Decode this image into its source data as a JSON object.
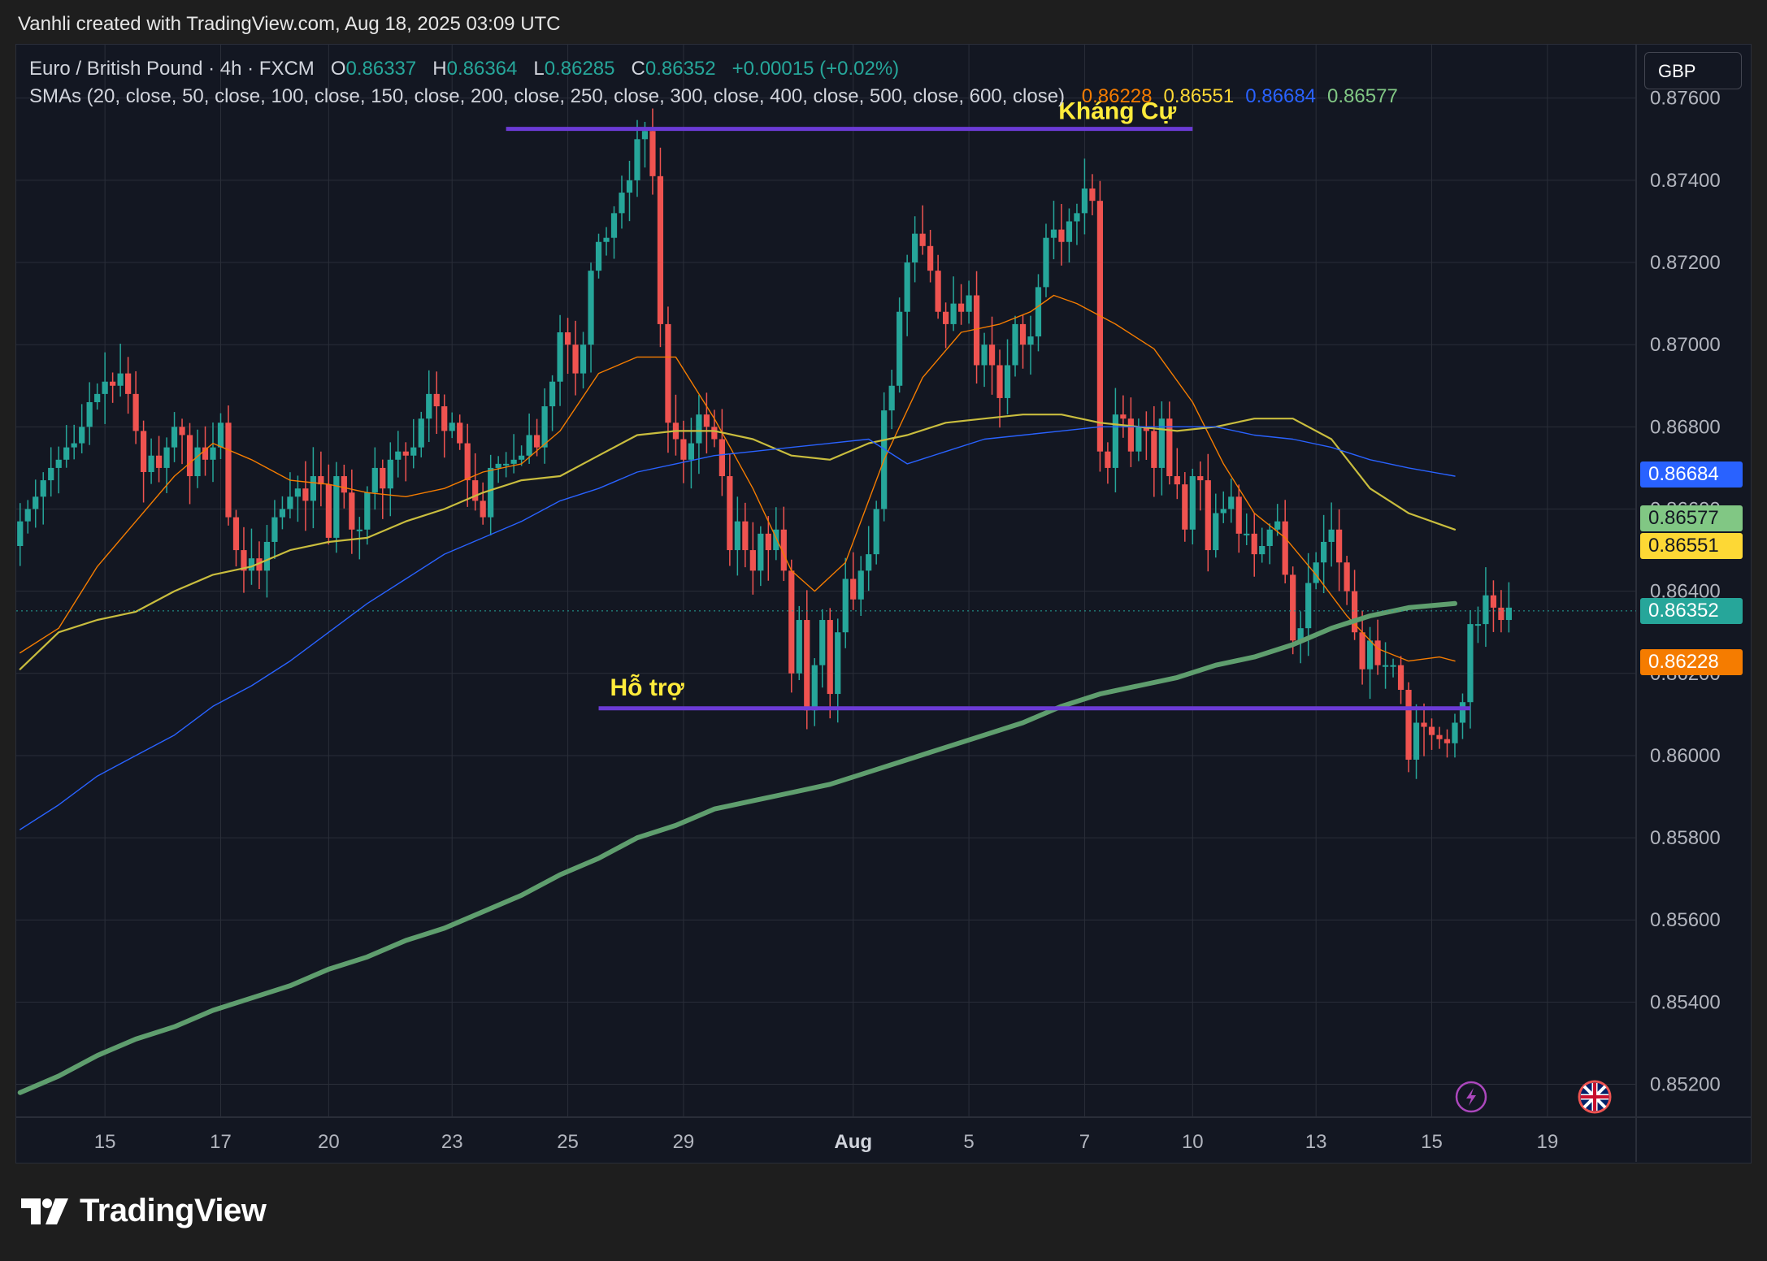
{
  "header": {
    "credit": "Vanhli created with TradingView.com, Aug 18, 2025 03:09 UTC"
  },
  "legend": {
    "symbol": "Euro / British Pound · 4h · FXCM",
    "open_label": "O",
    "open": "0.86337",
    "high_label": "H",
    "high": "0.86364",
    "low_label": "L",
    "low": "0.86285",
    "close_label": "C",
    "close": "0.86352",
    "change": "+0.00015 (+0.02%)",
    "sma_label": "SMAs (20, close, 50, close, 100, close, 150, close, 200, close, 250, close, 300, close, 400, close, 500, close, 600, close)",
    "sma_values": [
      {
        "value": "0.86228",
        "color": "#f57c00"
      },
      {
        "value": "0.86551",
        "color": "#fdd835"
      },
      {
        "value": "0.86684",
        "color": "#2962ff"
      },
      {
        "value": "0.86577",
        "color": "#81c784"
      }
    ]
  },
  "currency_button": "GBP",
  "brand": "TradingView",
  "colors": {
    "up": "#26a69a",
    "down": "#ef5350",
    "background": "#131722",
    "grid": "#2a2e39",
    "level_line": "#6c3bd6",
    "annotation": "#ffeb3b"
  },
  "chart_data": {
    "type": "candlestick",
    "title": "Euro / British Pound · 4h · FXCM",
    "timeframe": "4h",
    "y_axis": {
      "ylim": [
        0.8512,
        0.8773
      ],
      "ticks": [
        "0.87600",
        "0.87400",
        "0.87200",
        "0.87000",
        "0.86800",
        "0.86600",
        "0.86400",
        "0.86200",
        "0.86000",
        "0.85800",
        "0.85600",
        "0.85400",
        "0.85200"
      ],
      "side": "right"
    },
    "x_axis": {
      "ticks": [
        {
          "label": "15",
          "bar": 11,
          "bold": false
        },
        {
          "label": "17",
          "bar": 26,
          "bold": false
        },
        {
          "label": "20",
          "bar": 40,
          "bold": false
        },
        {
          "label": "23",
          "bar": 56,
          "bold": false
        },
        {
          "label": "25",
          "bar": 71,
          "bold": false
        },
        {
          "label": "29",
          "bar": 86,
          "bold": false
        },
        {
          "label": "Aug",
          "bar": 108,
          "bold": true
        },
        {
          "label": "5",
          "bar": 123,
          "bold": false
        },
        {
          "label": "7",
          "bar": 138,
          "bold": false
        },
        {
          "label": "10",
          "bar": 152,
          "bold": false
        },
        {
          "label": "13",
          "bar": 168,
          "bold": false
        },
        {
          "label": "15",
          "bar": 183,
          "bold": false
        },
        {
          "label": "19",
          "bar": 198,
          "bold": false
        }
      ],
      "total_slots": 210
    },
    "candles_close": [
      0.8657,
      0.866,
      0.8663,
      0.8667,
      0.867,
      0.8672,
      0.8675,
      0.8676,
      0.868,
      0.8686,
      0.8688,
      0.8691,
      0.869,
      0.8693,
      0.8688,
      0.8679,
      0.8669,
      0.8673,
      0.867,
      0.8675,
      0.868,
      0.8678,
      0.8668,
      0.8675,
      0.8672,
      0.8675,
      0.8681,
      0.8658,
      0.865,
      0.8645,
      0.8648,
      0.8645,
      0.8652,
      0.8658,
      0.866,
      0.8663,
      0.8665,
      0.8662,
      0.8668,
      0.8666,
      0.8653,
      0.8668,
      0.8664,
      0.8655,
      0.8655,
      0.8664,
      0.867,
      0.8665,
      0.8672,
      0.8674,
      0.8673,
      0.8675,
      0.8682,
      0.8688,
      0.8685,
      0.8679,
      0.8681,
      0.8676,
      0.8667,
      0.8662,
      0.8658,
      0.867,
      0.8671,
      0.8671,
      0.8672,
      0.8673,
      0.8678,
      0.8675,
      0.8685,
      0.8691,
      0.8703,
      0.87,
      0.8693,
      0.87,
      0.8718,
      0.8725,
      0.8726,
      0.8732,
      0.8737,
      0.874,
      0.875,
      0.8752,
      0.8741,
      0.8705,
      0.8681,
      0.8677,
      0.8672,
      0.8676,
      0.8683,
      0.868,
      0.8677,
      0.8668,
      0.865,
      0.8657,
      0.865,
      0.8645,
      0.8654,
      0.865,
      0.8655,
      0.8645,
      0.862,
      0.8633,
      0.8611,
      0.8622,
      0.8633,
      0.8615,
      0.863,
      0.8643,
      0.8638,
      0.8645,
      0.8649,
      0.866,
      0.8684,
      0.869,
      0.8708,
      0.872,
      0.8727,
      0.8724,
      0.8718,
      0.8708,
      0.8705,
      0.871,
      0.8708,
      0.8712,
      0.8695,
      0.87,
      0.8695,
      0.8687,
      0.8695,
      0.8705,
      0.87,
      0.8702,
      0.8714,
      0.8726,
      0.8728,
      0.8725,
      0.873,
      0.8732,
      0.8738,
      0.8735,
      0.8674,
      0.867,
      0.8683,
      0.8682,
      0.8674,
      0.868,
      0.8679,
      0.867,
      0.8682,
      0.8668,
      0.8666,
      0.8655,
      0.8668,
      0.8667,
      0.865,
      0.8659,
      0.866,
      0.8663,
      0.8654,
      0.8654,
      0.8649,
      0.8651,
      0.8655,
      0.8657,
      0.8644,
      0.8628,
      0.8631,
      0.8642,
      0.8647,
      0.8652,
      0.8655,
      0.8647,
      0.864,
      0.863,
      0.8621,
      0.8628,
      0.8622,
      0.8622,
      0.8622,
      0.8616,
      0.8599,
      0.8608,
      0.8607,
      0.8605,
      0.8604,
      0.8603,
      0.8608,
      0.8613,
      0.8632,
      0.8632,
      0.8639,
      0.8636,
      0.8633,
      0.8636
    ],
    "series": [
      {
        "name": "SMA 20",
        "color": "#f57c00",
        "width": 1.4,
        "points": [
          [
            0,
            0.8625
          ],
          [
            5,
            0.8631
          ],
          [
            10,
            0.8646
          ],
          [
            15,
            0.8657
          ],
          [
            20,
            0.8668
          ],
          [
            25,
            0.8676
          ],
          [
            30,
            0.8672
          ],
          [
            35,
            0.8667
          ],
          [
            40,
            0.8666
          ],
          [
            45,
            0.8664
          ],
          [
            50,
            0.8663
          ],
          [
            55,
            0.8665
          ],
          [
            60,
            0.8669
          ],
          [
            65,
            0.8671
          ],
          [
            70,
            0.8679
          ],
          [
            75,
            0.8693
          ],
          [
            80,
            0.8697
          ],
          [
            85,
            0.8697
          ],
          [
            90,
            0.8682
          ],
          [
            95,
            0.8665
          ],
          [
            100,
            0.8645
          ],
          [
            103,
            0.864
          ],
          [
            107,
            0.8647
          ],
          [
            112,
            0.8672
          ],
          [
            117,
            0.8692
          ],
          [
            122,
            0.8703
          ],
          [
            127,
            0.8705
          ],
          [
            131,
            0.8708
          ],
          [
            134,
            0.8712
          ],
          [
            137,
            0.871
          ],
          [
            142,
            0.8705
          ],
          [
            147,
            0.8699
          ],
          [
            152,
            0.8686
          ],
          [
            156,
            0.8671
          ],
          [
            160,
            0.8659
          ],
          [
            164,
            0.8653
          ],
          [
            168,
            0.8644
          ],
          [
            172,
            0.8634
          ],
          [
            176,
            0.8626
          ],
          [
            180,
            0.8623
          ],
          [
            184,
            0.8624
          ],
          [
            186,
            0.8623
          ]
        ]
      },
      {
        "name": "SMA 50",
        "color": "#c9bd3e",
        "width": 2.2,
        "points": [
          [
            0,
            0.8621
          ],
          [
            5,
            0.863
          ],
          [
            10,
            0.8633
          ],
          [
            15,
            0.8635
          ],
          [
            20,
            0.864
          ],
          [
            25,
            0.8644
          ],
          [
            30,
            0.8646
          ],
          [
            35,
            0.865
          ],
          [
            40,
            0.8652
          ],
          [
            45,
            0.8653
          ],
          [
            50,
            0.8657
          ],
          [
            55,
            0.866
          ],
          [
            60,
            0.8664
          ],
          [
            65,
            0.8667
          ],
          [
            70,
            0.8668
          ],
          [
            75,
            0.8673
          ],
          [
            80,
            0.8678
          ],
          [
            85,
            0.8679
          ],
          [
            90,
            0.8679
          ],
          [
            95,
            0.8677
          ],
          [
            100,
            0.8673
          ],
          [
            105,
            0.8672
          ],
          [
            110,
            0.8676
          ],
          [
            115,
            0.8678
          ],
          [
            120,
            0.8681
          ],
          [
            125,
            0.8682
          ],
          [
            130,
            0.8683
          ],
          [
            135,
            0.8683
          ],
          [
            140,
            0.8681
          ],
          [
            145,
            0.868
          ],
          [
            150,
            0.8679
          ],
          [
            155,
            0.868
          ],
          [
            160,
            0.8682
          ],
          [
            165,
            0.8682
          ],
          [
            170,
            0.8677
          ],
          [
            175,
            0.8665
          ],
          [
            180,
            0.8659
          ],
          [
            186,
            0.8655
          ]
        ]
      },
      {
        "name": "SMA 100",
        "color": "#2962ff",
        "width": 1.4,
        "points": [
          [
            0,
            0.8582
          ],
          [
            5,
            0.8588
          ],
          [
            10,
            0.8595
          ],
          [
            15,
            0.86
          ],
          [
            20,
            0.8605
          ],
          [
            25,
            0.8612
          ],
          [
            30,
            0.8617
          ],
          [
            35,
            0.8623
          ],
          [
            40,
            0.863
          ],
          [
            45,
            0.8637
          ],
          [
            50,
            0.8643
          ],
          [
            55,
            0.8649
          ],
          [
            60,
            0.8653
          ],
          [
            65,
            0.8657
          ],
          [
            70,
            0.8662
          ],
          [
            75,
            0.8665
          ],
          [
            80,
            0.8669
          ],
          [
            85,
            0.8671
          ],
          [
            90,
            0.8673
          ],
          [
            95,
            0.8674
          ],
          [
            100,
            0.8675
          ],
          [
            105,
            0.8676
          ],
          [
            110,
            0.8677
          ],
          [
            115,
            0.8671
          ],
          [
            120,
            0.8674
          ],
          [
            125,
            0.8677
          ],
          [
            130,
            0.8678
          ],
          [
            135,
            0.8679
          ],
          [
            140,
            0.868
          ],
          [
            145,
            0.868
          ],
          [
            150,
            0.868
          ],
          [
            155,
            0.868
          ],
          [
            160,
            0.8678
          ],
          [
            165,
            0.8677
          ],
          [
            170,
            0.8675
          ],
          [
            175,
            0.8672
          ],
          [
            180,
            0.867
          ],
          [
            186,
            0.8668
          ]
        ]
      },
      {
        "name": "SMA 600",
        "color": "#5f9e6e",
        "width": 6,
        "points": [
          [
            0,
            0.8518
          ],
          [
            5,
            0.8522
          ],
          [
            10,
            0.8527
          ],
          [
            15,
            0.8531
          ],
          [
            20,
            0.8534
          ],
          [
            25,
            0.8538
          ],
          [
            30,
            0.8541
          ],
          [
            35,
            0.8544
          ],
          [
            40,
            0.8548
          ],
          [
            45,
            0.8551
          ],
          [
            50,
            0.8555
          ],
          [
            55,
            0.8558
          ],
          [
            60,
            0.8562
          ],
          [
            65,
            0.8566
          ],
          [
            70,
            0.8571
          ],
          [
            75,
            0.8575
          ],
          [
            80,
            0.858
          ],
          [
            85,
            0.8583
          ],
          [
            90,
            0.8587
          ],
          [
            95,
            0.8589
          ],
          [
            100,
            0.8591
          ],
          [
            105,
            0.8593
          ],
          [
            110,
            0.8596
          ],
          [
            115,
            0.8599
          ],
          [
            120,
            0.8602
          ],
          [
            125,
            0.8605
          ],
          [
            130,
            0.8608
          ],
          [
            135,
            0.8612
          ],
          [
            140,
            0.8615
          ],
          [
            145,
            0.8617
          ],
          [
            150,
            0.8619
          ],
          [
            155,
            0.8622
          ],
          [
            160,
            0.8624
          ],
          [
            165,
            0.8627
          ],
          [
            170,
            0.8631
          ],
          [
            175,
            0.8634
          ],
          [
            180,
            0.8636
          ],
          [
            186,
            0.8637
          ]
        ]
      }
    ],
    "levels": [
      {
        "name": "resistance",
        "label": "Kháng Cự",
        "price": 0.87525,
        "x_start_bar": 63,
        "x_end_bar": 152
      },
      {
        "name": "support",
        "label": "Hỗ trợ",
        "price": 0.86115,
        "x_start_bar": 75,
        "x_end_bar": 188
      }
    ],
    "last_price": 0.86352,
    "price_tags": [
      {
        "value": "0.86684",
        "bg": "#2962ff",
        "fg": "#ffffff",
        "price": 0.86684
      },
      {
        "value": "0.86577",
        "bg": "#81c784",
        "fg": "#131722",
        "price": 0.86577
      },
      {
        "value": "0.86551",
        "bg": "#fdd835",
        "fg": "#131722",
        "price": 0.86551
      },
      {
        "value": "0.86352",
        "bg": "#26a69a",
        "fg": "#ffffff",
        "price": 0.86352
      },
      {
        "value": "0.86228",
        "bg": "#f57c00",
        "fg": "#ffffff",
        "price": 0.86228
      }
    ]
  }
}
